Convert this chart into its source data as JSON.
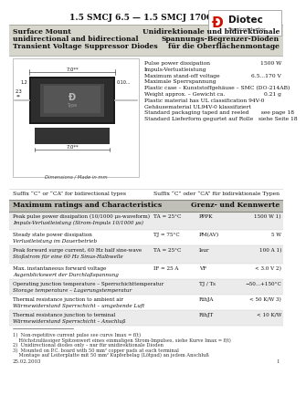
{
  "title": "1.5 SMCJ 6.5 — 1.5 SMCJ 170CA",
  "company": "Diotec",
  "company_sub": "Semiconductor",
  "left_heading1": "Surface Mount",
  "left_heading2": "unidirectional and bidirectional",
  "left_heading3": "Transient Voltage Suppressor Diodes",
  "right_heading1": "Unidirektionale und bidirektionale",
  "right_heading2": "Spannungs-Begrenzer-Dioden",
  "right_heading3": "für die Oberflächenmontage",
  "spec_left": [
    "Pulse power dissipation",
    "Impuls-Verlustleistung",
    "Maximum stand-off voltage",
    "Maximale Sperrspannung",
    "Plastic case – Kunststoffgehäuse – SMC (DO-214AB)",
    "Weight approx. – Gewicht ca.",
    "Plastic material has UL classification 94V-0",
    "Gehäusematerial UL94V-0 klassifiziert",
    "Standard packaging taped and reeled       see page 18",
    "Standard Lieferform gegurtet auf Rolle   siehe Seite 18"
  ],
  "spec_right": [
    "1500 W",
    "",
    "6.5...170 V",
    "",
    "",
    "0.21 g",
    "",
    "",
    "",
    ""
  ],
  "suffix_en": "Suffix “C” or “CA” for bidirectional types",
  "suffix_de": "Suffix “C” oder “CA” für bidirektionale Typen",
  "table_title_en": "Maximum ratings and Characteristics",
  "table_title_de": "Grenz- und Kennwerte",
  "rows": [
    [
      "Peak pulse power dissipation (10/1000 μs-waveform)",
      "Impuls-Verlustleistung (Strom-Impuls 10/1000 μs)",
      "TA = 25°C",
      "PPPK",
      "1500 W 1)"
    ],
    [
      "Steady state power dissipation",
      "Verlustleistung im Dauerbetrieb",
      "TJ = 75°C",
      "PM(AV)",
      "5 W"
    ],
    [
      "Peak forward surge current, 60 Hz half sine-wave",
      "Stoßstrom für eine 60 Hz Sinus-Halbwelle",
      "TA = 25°C",
      "Isur",
      "100 A 1)"
    ],
    [
      "Max. instantaneous forward voltage",
      "Augenblickswert der Durchlaßspannung",
      "IF = 25 A",
      "VF",
      "< 3.0 V 2)"
    ],
    [
      "Operating junction temperature – Sperrschichttemperatur",
      "Storage temperature – Lagerungstemperatur",
      "",
      "TJ / Ts",
      "−50...+150°C"
    ],
    [
      "Thermal resistance junction to ambient air",
      "Wärmewiderstand Sperrschicht – umgebende Luft",
      "",
      "RthJA",
      "< 50 K/W 3)"
    ],
    [
      "Thermal resistance junction to terminal",
      "Wärmewiderstand Sperrschicht – Anschluß",
      "",
      "RthJT",
      "< 10 K/W"
    ]
  ],
  "footnote_lines": [
    "1)  Non-repetitive current pulse see curve Imax = f(t)",
    "    Höchstzulässiger Spitzenwert eines einmaligen Strom-Impulses, siehe Kurve Imax = f(t)",
    "2)  Unidirectional diodes only – nur für unidirektionale Dioden",
    "3)  Mounted on P.C. board with 50 mm² copper pads at each terminal",
    "    Montage auf Leiterplatte mit 50 mm² Kupferbelag (Lötpad) an jedem Anschluß"
  ],
  "date": "25.02.2003",
  "page": "1"
}
